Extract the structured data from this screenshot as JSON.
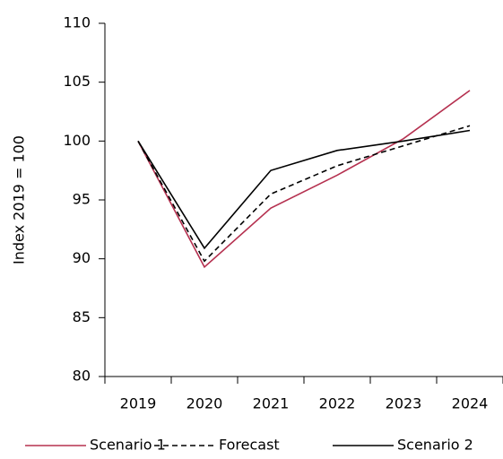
{
  "chart_data": {
    "type": "line",
    "y_label": "Index 2019 = 100",
    "categories": [
      "2019",
      "2020",
      "2021",
      "2022",
      "2023",
      "2024"
    ],
    "series": [
      {
        "name": "Scenario 1",
        "color": "#b5304f",
        "dashed": false,
        "values": [
          100,
          89.3,
          94.3,
          97.1,
          100.2,
          104.3
        ]
      },
      {
        "name": "Forecast",
        "color": "#000000",
        "dashed": true,
        "values": [
          100,
          89.8,
          95.5,
          97.9,
          99.6,
          101.3
        ]
      },
      {
        "name": "Scenario 2",
        "color": "#000000",
        "dashed": false,
        "values": [
          100,
          90.9,
          97.5,
          99.2,
          100.0,
          100.9
        ]
      }
    ],
    "ylim": [
      80,
      110
    ],
    "yticks": [
      80,
      85,
      90,
      95,
      100,
      105,
      110
    ],
    "grid": false
  }
}
